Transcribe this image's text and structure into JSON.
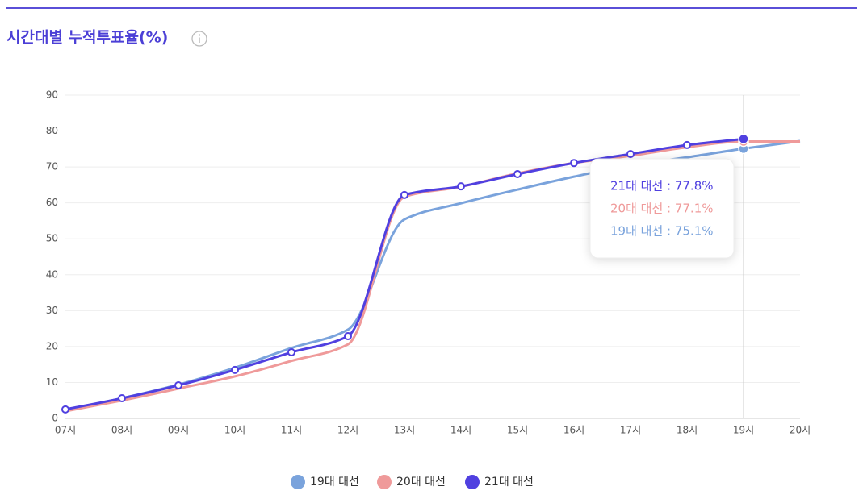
{
  "chart_data": {
    "type": "line",
    "title": "시간대별 누적투표율(%)",
    "categories": [
      "07시",
      "08시",
      "09시",
      "10시",
      "11시",
      "12시",
      "13시",
      "14시",
      "15시",
      "16시",
      "17시",
      "18시",
      "19시",
      "20시"
    ],
    "series": [
      {
        "name": "19대 대선",
        "color": "#7aa3dc",
        "values": [
          2.3,
          5.6,
          9.4,
          14.1,
          19.6,
          24.7,
          55.4,
          59.9,
          63.7,
          67.3,
          70.5,
          72.7,
          75.1,
          77.2
        ]
      },
      {
        "name": "20대 대선",
        "color": "#ef9a9a",
        "values": [
          2.0,
          5.0,
          8.3,
          11.7,
          16.0,
          20.6,
          61.7,
          64.5,
          68.2,
          71.1,
          73.1,
          75.5,
          77.1,
          77.1
        ]
      },
      {
        "name": "21대 대선",
        "color": "#5040e0",
        "values": [
          2.5,
          5.6,
          9.2,
          13.5,
          18.4,
          22.9,
          62.2,
          64.6,
          68.0,
          71.1,
          73.6,
          76.1,
          77.8,
          null
        ]
      }
    ],
    "ylim": [
      0,
      90
    ],
    "yticks": [
      0,
      10,
      20,
      30,
      40,
      50,
      60,
      70,
      80,
      90
    ],
    "grid": true,
    "tooltip": {
      "lines": [
        "21대 대선 : 77.8%",
        "20대 대선 : 77.1%",
        "19대 대선 : 75.1%"
      ]
    }
  }
}
